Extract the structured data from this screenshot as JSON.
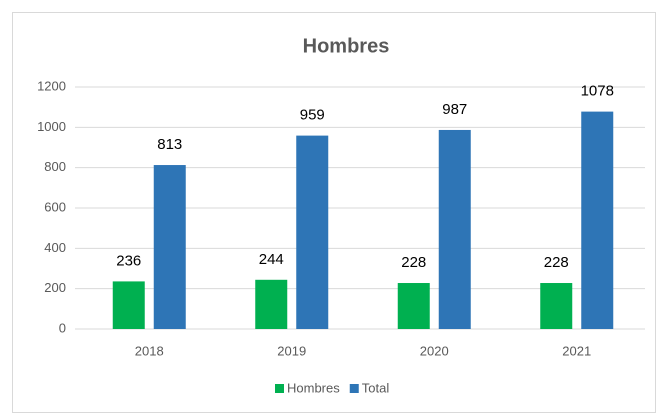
{
  "chart_data": {
    "type": "bar",
    "title": "Hombres",
    "categories": [
      "2018",
      "2019",
      "2020",
      "2021"
    ],
    "series": [
      {
        "name": "Hombres",
        "color": "#00b050",
        "values": [
          236,
          244,
          228,
          228
        ]
      },
      {
        "name": "Total",
        "color": "#2e75b6",
        "values": [
          813,
          959,
          987,
          1078
        ]
      }
    ],
    "ylim": [
      0,
      1200
    ],
    "yticks": [
      0,
      200,
      400,
      600,
      800,
      1000,
      1200
    ],
    "grid": true,
    "legend": "bottom"
  }
}
